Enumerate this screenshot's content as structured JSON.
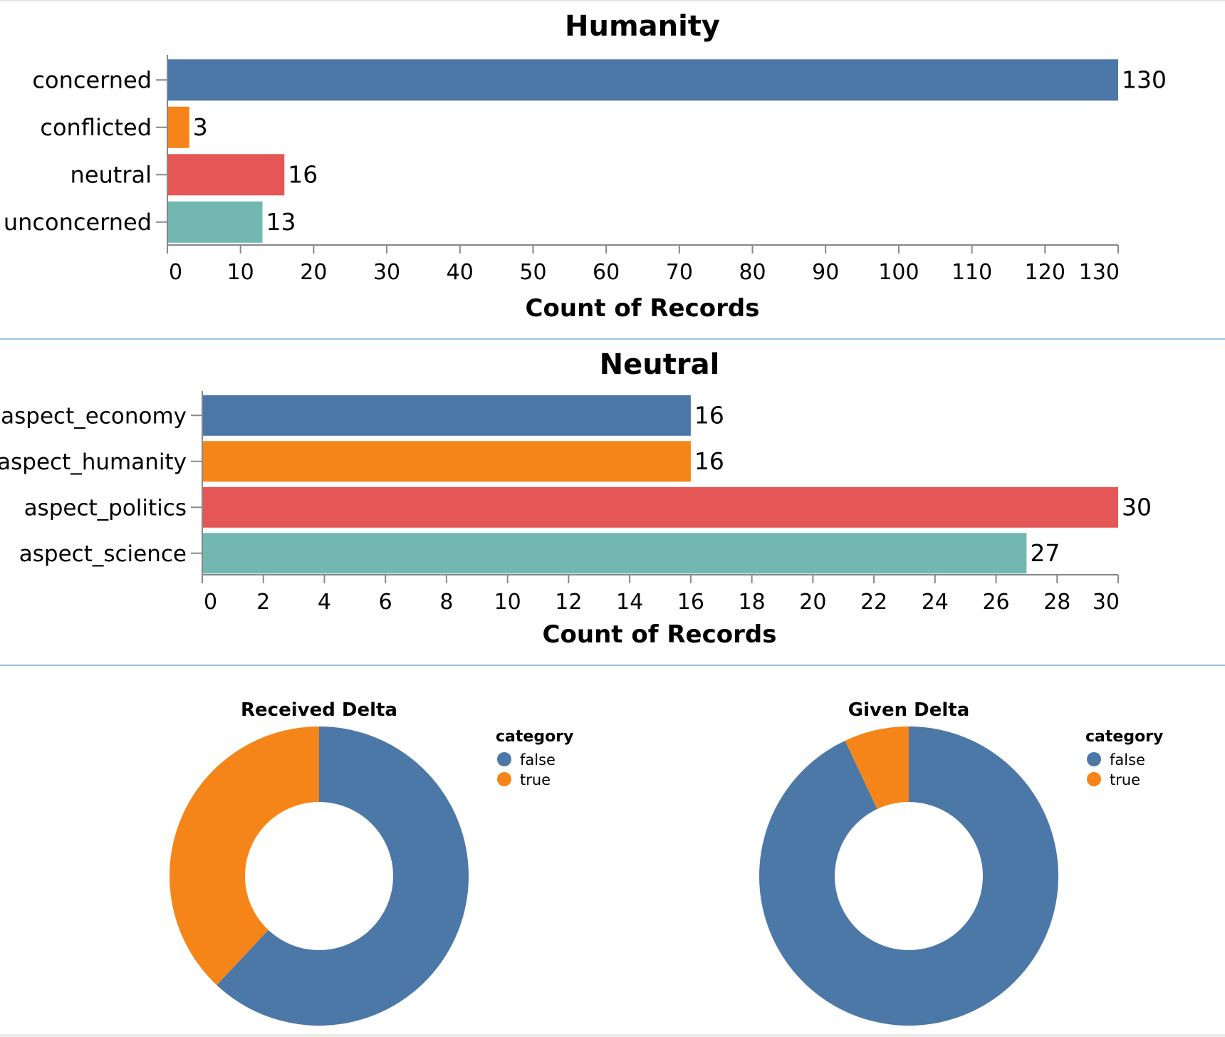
{
  "chart_data": [
    {
      "type": "bar",
      "orientation": "horizontal",
      "title": "Humanity",
      "xlabel": "Count of Records",
      "ylabel": "",
      "categories": [
        "concerned",
        "conflicted",
        "neutral",
        "unconcerned"
      ],
      "values": [
        130,
        3,
        16,
        13
      ],
      "colors": [
        "#4c78a8",
        "#f58518",
        "#e45756",
        "#72b7b2"
      ],
      "xlim": [
        0,
        130
      ],
      "ticks": [
        0,
        10,
        20,
        30,
        40,
        50,
        60,
        70,
        80,
        90,
        100,
        110,
        120,
        130
      ],
      "grid": false
    },
    {
      "type": "bar",
      "orientation": "horizontal",
      "title": "Neutral",
      "xlabel": "Count of Records",
      "ylabel": "",
      "categories": [
        "aspect_economy",
        "aspect_humanity",
        "aspect_politics",
        "aspect_science"
      ],
      "values": [
        16,
        16,
        30,
        27
      ],
      "colors": [
        "#4c78a8",
        "#f58518",
        "#e45756",
        "#72b7b2"
      ],
      "xlim": [
        0,
        30
      ],
      "ticks": [
        0,
        2,
        4,
        6,
        8,
        10,
        12,
        14,
        16,
        18,
        20,
        22,
        24,
        26,
        28,
        30
      ],
      "grid": false
    },
    {
      "type": "pie",
      "variant": "donut",
      "title": "Received Delta",
      "legend_title": "category",
      "legend_position": "right",
      "categories": [
        "false",
        "true"
      ],
      "values": [
        62,
        38
      ],
      "colors": [
        "#4c78a8",
        "#f58518"
      ]
    },
    {
      "type": "pie",
      "variant": "donut",
      "title": "Given Delta",
      "legend_title": "category",
      "legend_position": "right",
      "categories": [
        "false",
        "true"
      ],
      "values": [
        93,
        7
      ],
      "colors": [
        "#4c78a8",
        "#f58518"
      ]
    }
  ]
}
